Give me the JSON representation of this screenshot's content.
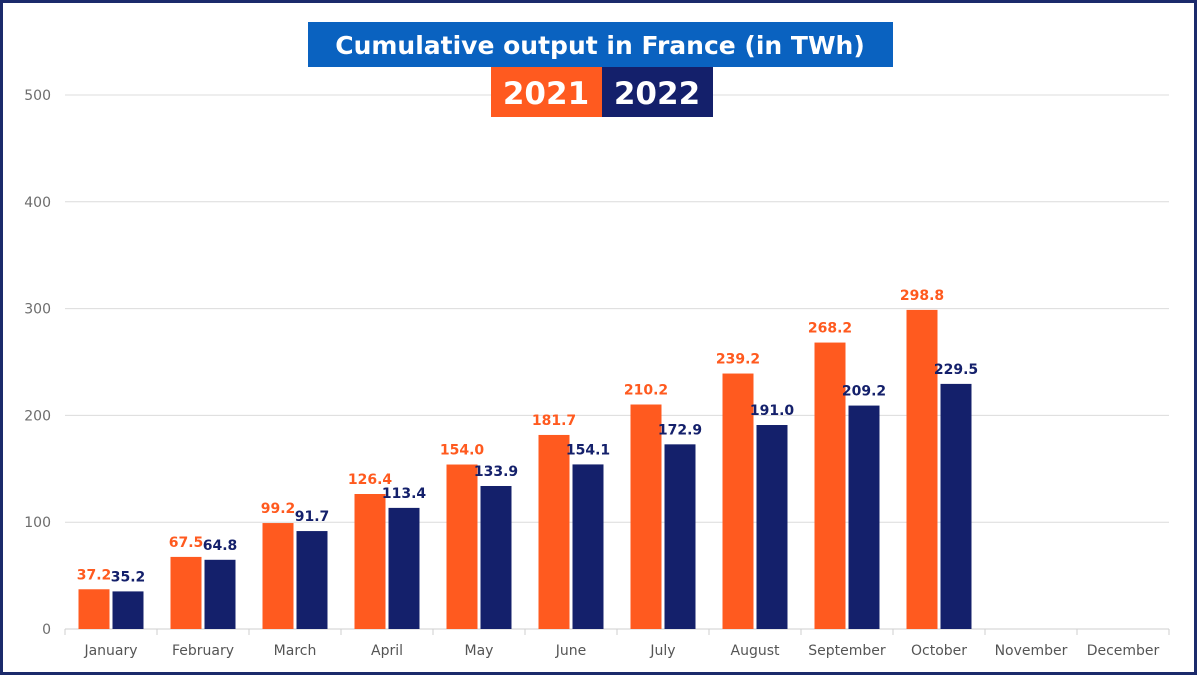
{
  "chart_data": {
    "type": "bar",
    "title": "Cumulative output in France (in TWh)",
    "categories": [
      "January",
      "February",
      "March",
      "April",
      "May",
      "June",
      "July",
      "August",
      "September",
      "October",
      "November",
      "December"
    ],
    "series": [
      {
        "name": "2021",
        "color": "#ff5a1f",
        "values": [
          37.2,
          67.5,
          99.2,
          126.4,
          154.0,
          181.7,
          210.2,
          239.2,
          268.2,
          298.8,
          null,
          null
        ],
        "labels": [
          "37.2",
          "67.5",
          "99.2",
          "126.4",
          "154.0",
          "181.7",
          "210.2",
          "239.2",
          "268.2",
          "298.8",
          null,
          null
        ]
      },
      {
        "name": "2022",
        "color": "#14206b",
        "values": [
          35.2,
          64.8,
          91.7,
          113.4,
          133.9,
          154.1,
          172.9,
          191.0,
          209.2,
          229.5,
          null,
          null
        ],
        "labels": [
          "35.2",
          "64.8",
          "91.7",
          "113.4",
          "133.9",
          "154.1",
          "172.9",
          "191.0",
          "209.2",
          "229.5",
          null,
          null
        ]
      }
    ],
    "ylim": [
      0,
      500
    ],
    "yticks": [
      "0",
      "100",
      "200",
      "300",
      "400",
      "500"
    ],
    "grid": true,
    "legend_placement": "top-center",
    "title_background": "#0a62c0"
  }
}
